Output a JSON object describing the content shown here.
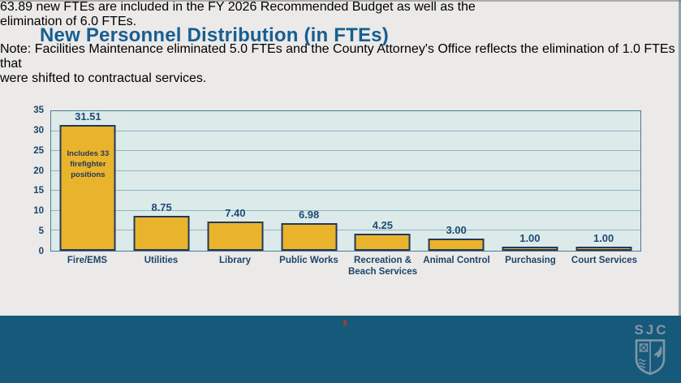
{
  "slide": {
    "title": "New Personnel Distribution (in FTEs)",
    "subtitle_lines": [
      "63.89 new FTEs are included in the FY 2026 Recommended Budget as well as the",
      "elimination of 6.0 FTEs."
    ],
    "note_lines": [
      "Note: Facilities Maintenance eliminated 5.0 FTEs and the County Attorney's Office reflects the elimination of 1.0 FTEs that",
      "were shifted to contractual services."
    ]
  },
  "chart_data": {
    "type": "bar",
    "title": "",
    "xlabel": "",
    "ylabel": "",
    "categories": [
      "Fire/EMS",
      "Utilities",
      "Library",
      "Public Works",
      "Recreation &\nBeach Services",
      "Animal Control",
      "Purchasing",
      "Court Services"
    ],
    "values": [
      31.51,
      8.75,
      7.4,
      6.98,
      4.25,
      3.0,
      1.0,
      1.0
    ],
    "value_labels": [
      "31.51",
      "8.75",
      "7.40",
      "6.98",
      "4.25",
      "3.00",
      "1.00",
      "1.00"
    ],
    "bar_annotation": {
      "index": 0,
      "text": "Includes 33\nfirefighter\npositions"
    },
    "ylim": [
      0,
      35
    ],
    "yticks": [
      0,
      5,
      10,
      15,
      20,
      25,
      30,
      35
    ],
    "grid": true,
    "legend": "none",
    "bar_color": "#E9B32B",
    "bar_border_color": "#24395B",
    "plot_bg": "#DCEAEA",
    "gridline_color": "#8FB6C2"
  },
  "footer": {
    "logo_text": "SJC"
  },
  "colors": {
    "slide_bg": "#EBEAE8",
    "heading": "#175E92",
    "body_text": "#24648F",
    "label_navy": "#1C456A",
    "value_label": "#1E4C74",
    "footer_band": "#17597A",
    "logo": "#8097A8"
  }
}
